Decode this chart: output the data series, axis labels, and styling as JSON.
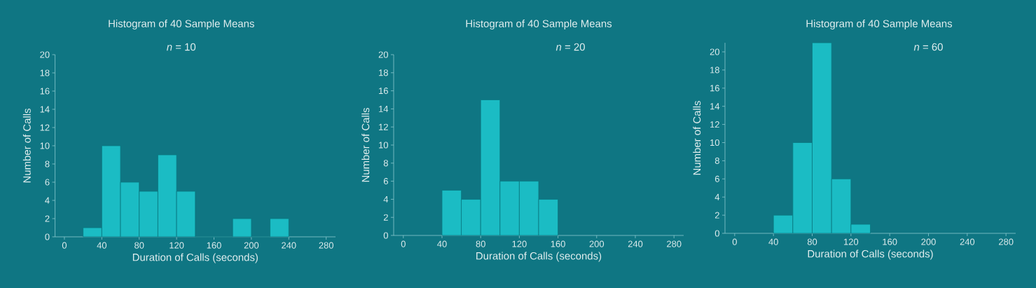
{
  "chart_data": [
    {
      "type": "histogram",
      "title": "Histogram of 40 Sample Means",
      "subtitle": "*n* = 10",
      "xlabel": "Duration of Calls (seconds)",
      "ylabel": "Number of Calls",
      "color": "#1bbcc4",
      "bins": [
        20,
        40,
        60,
        80,
        100,
        120,
        140,
        160,
        180,
        200,
        220,
        240
      ],
      "values": [
        1,
        10,
        6,
        5,
        9,
        5,
        0,
        0,
        2,
        0,
        2
      ],
      "xlim": [
        -10,
        290
      ],
      "ylim": [
        0,
        20
      ],
      "xticks": [
        0,
        40,
        80,
        120,
        160,
        200,
        240,
        280
      ],
      "yticks": [
        0,
        2,
        4,
        6,
        8,
        10,
        12,
        14,
        16,
        18,
        20
      ]
    },
    {
      "type": "histogram",
      "title": "Histogram of 40 Sample Means",
      "subtitle": "*n* = 20",
      "xlabel": "Duration of Calls (seconds)",
      "ylabel": "Number of Calls",
      "color": "#1bbcc4",
      "bins": [
        40,
        60,
        80,
        100,
        120,
        140,
        160
      ],
      "values": [
        5,
        4,
        15,
        6,
        6,
        4
      ],
      "xlim": [
        -10,
        290
      ],
      "ylim": [
        0,
        20
      ],
      "xticks": [
        0,
        40,
        80,
        120,
        160,
        200,
        240,
        280
      ],
      "yticks": [
        0,
        2,
        4,
        6,
        8,
        10,
        12,
        14,
        16,
        18,
        20
      ]
    },
    {
      "type": "histogram",
      "title": "Histogram of 40 Sample Means",
      "subtitle": "*n* = 60",
      "xlabel": "Duration of Calls (seconds)",
      "ylabel": "Number of Calls",
      "color": "#1bbcc4",
      "bins": [
        40,
        60,
        80,
        100,
        120,
        140
      ],
      "values": [
        2,
        10,
        21,
        6,
        1
      ],
      "xlim": [
        -10,
        290
      ],
      "ylim": [
        0,
        21
      ],
      "xticks": [
        0,
        40,
        80,
        120,
        160,
        200,
        240,
        280
      ],
      "yticks": [
        0,
        2,
        4,
        6,
        8,
        10,
        12,
        14,
        16,
        18,
        20
      ]
    }
  ]
}
